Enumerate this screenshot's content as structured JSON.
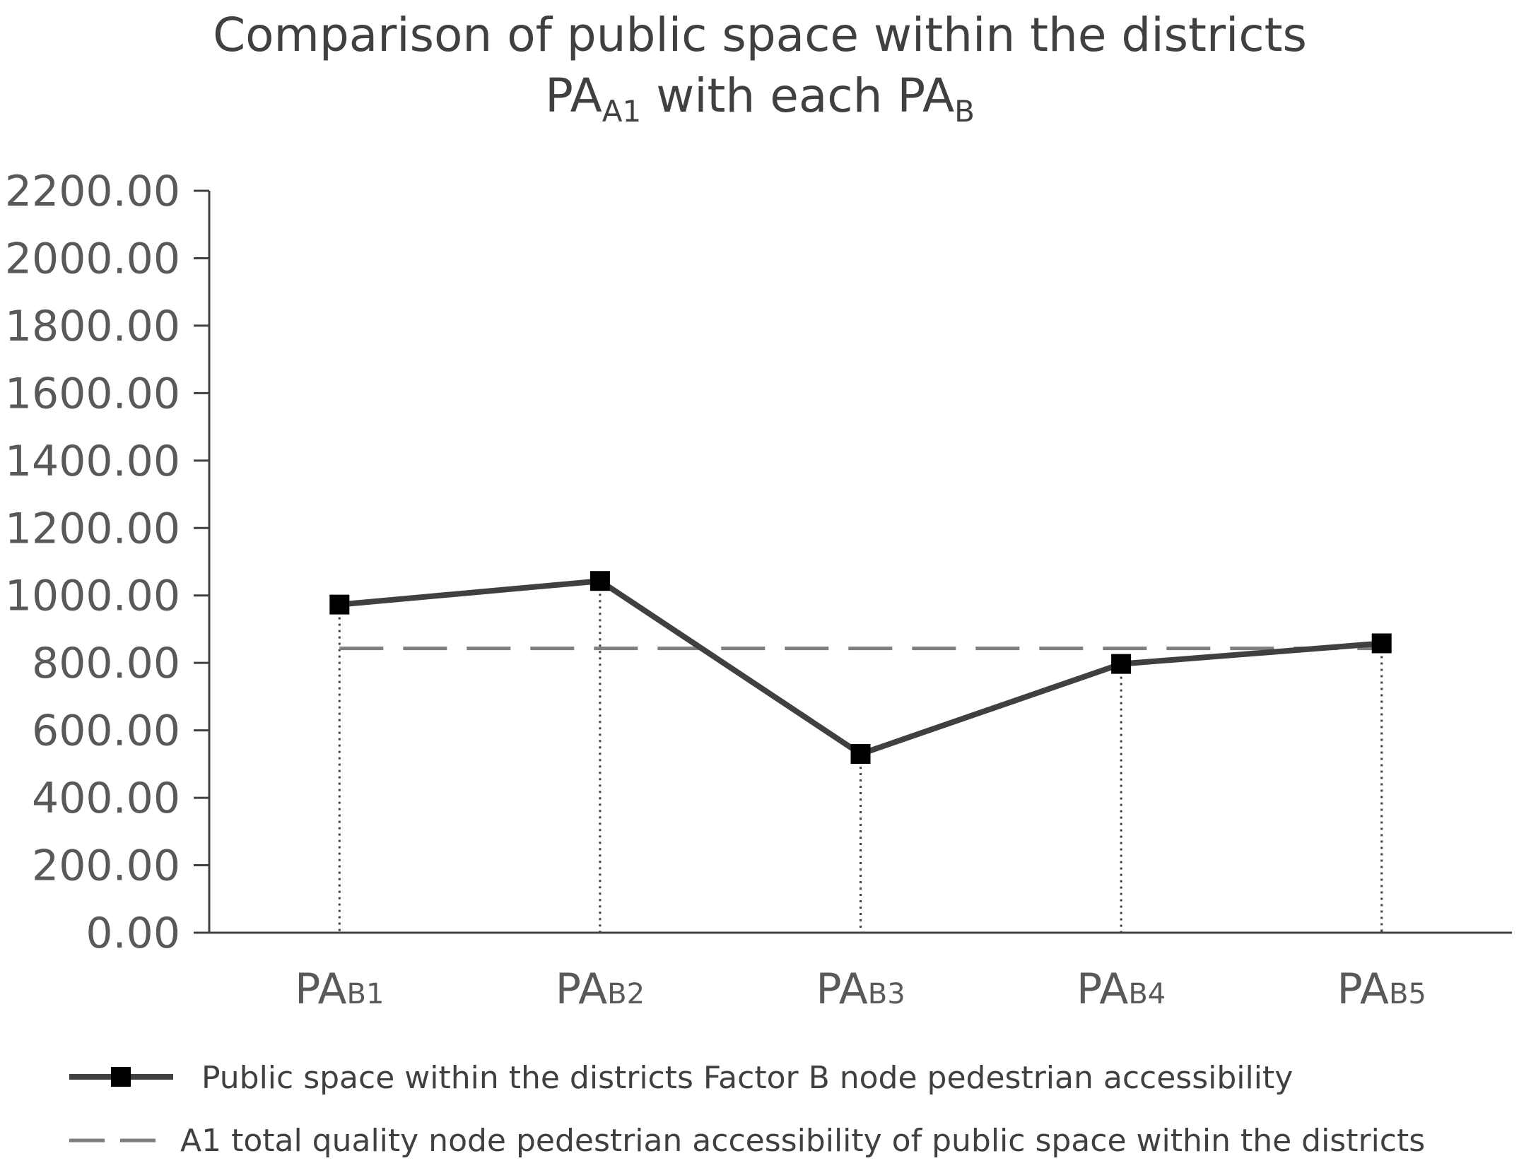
{
  "chart_data": {
    "type": "line",
    "title": {
      "line1": "Comparison of public space within the districts",
      "line2_prefix": "PA",
      "line2_prefix_sub": "A1",
      "line2_mid": " with each PA",
      "line2_suffix_sub": "B"
    },
    "xlabel": "",
    "ylabel": "",
    "categories": [
      {
        "main": "PA",
        "sub": "B1"
      },
      {
        "main": "PA",
        "sub": "B2"
      },
      {
        "main": "PA",
        "sub": "B3"
      },
      {
        "main": "PA",
        "sub": "B4"
      },
      {
        "main": "PA",
        "sub": "B5"
      }
    ],
    "ylim": [
      0,
      2200
    ],
    "yticks": [
      "0.00",
      "200.00",
      "400.00",
      "600.00",
      "800.00",
      "1000.00",
      "1200.00",
      "1400.00",
      "1600.00",
      "1800.00",
      "2000.00",
      "2200.00"
    ],
    "series": [
      {
        "name": "Public space within the districts Factor B node pedestrian accessibility",
        "style": "solid-with-square-markers",
        "color": "#404040",
        "values": [
          973,
          1043,
          530,
          797,
          858
        ]
      },
      {
        "name": "A1 total quality node pedestrian accessibility of public space within the districts",
        "style": "dashed",
        "color": "#7f7f7f",
        "values": [
          843,
          843,
          843,
          843,
          843
        ]
      }
    ],
    "drop_lines": true,
    "grid": false,
    "legend_position": "bottom"
  }
}
